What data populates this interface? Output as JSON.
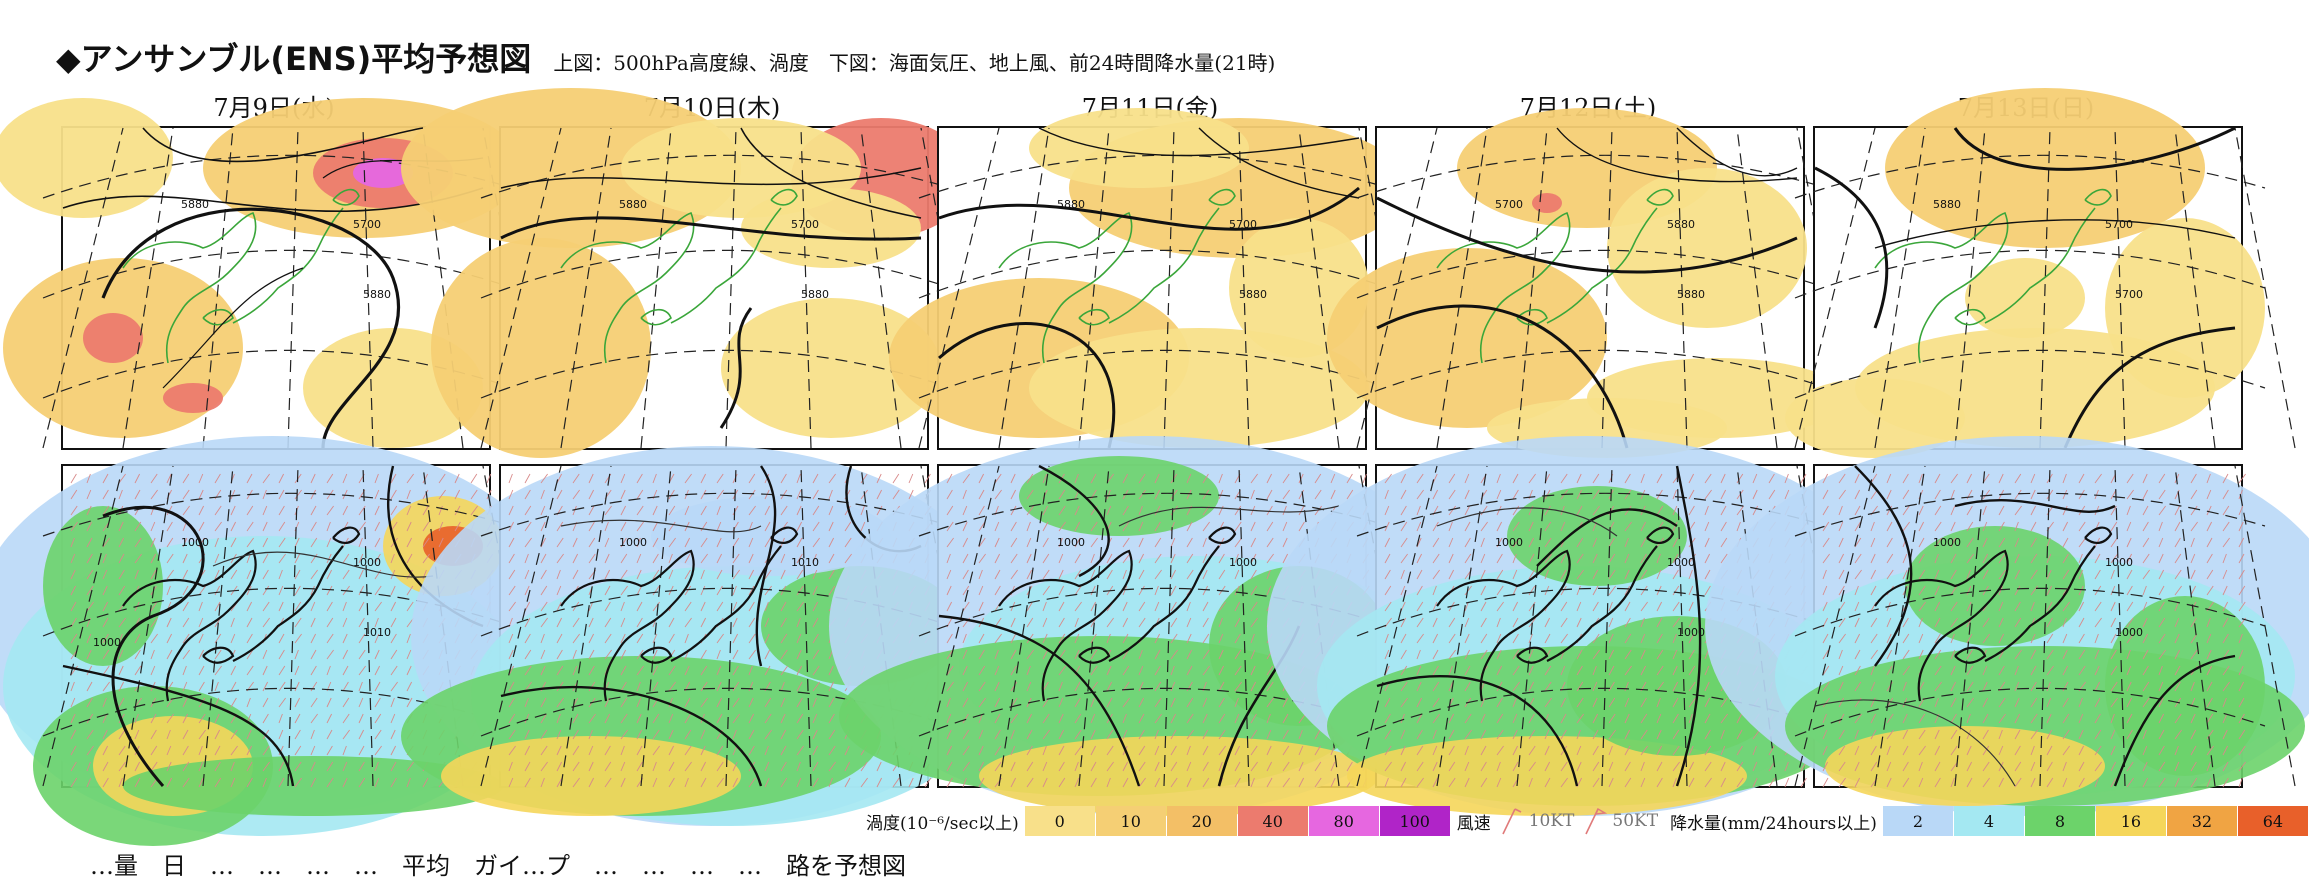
{
  "header": {
    "title": "◆アンサンブル(ENS)平均予想図",
    "subtitle": "上図：500hPa高度線、渦度　下図：海面気圧、地上風、前24時間降水量(21時)"
  },
  "dates": [
    "7月9日(水)",
    "7月10日(木)",
    "7月11日(金)",
    "7月12日(土)",
    "7月13日(日)"
  ],
  "upper_contour_labels": [
    [
      "5880",
      "5700",
      "5880"
    ],
    [
      "5880",
      "5700",
      "5880"
    ],
    [
      "5880",
      "5700",
      "5880"
    ],
    [
      "5700",
      "5880",
      "5880"
    ],
    [
      "5880",
      "5700",
      "5700"
    ]
  ],
  "lower_contour_labels": [
    [
      "1000",
      "1000",
      "1010",
      "1000"
    ],
    [
      "1000",
      "1010"
    ],
    [
      "1000",
      "1000"
    ],
    [
      "1000",
      "1000",
      "1000"
    ],
    [
      "1000",
      "1000",
      "1000"
    ]
  ],
  "legend": {
    "vorticity_label": "渦度(10⁻⁶/sec以上)",
    "vorticity_levels": [
      {
        "value": "0",
        "color": "#f8e08a"
      },
      {
        "value": "10",
        "color": "#f5cf74"
      },
      {
        "value": "20",
        "color": "#f3bf66"
      },
      {
        "value": "40",
        "color": "#ec7b6e"
      },
      {
        "value": "80",
        "color": "#e667e0"
      },
      {
        "value": "100",
        "color": "#b024c8"
      }
    ],
    "wind_label": "風速",
    "wind_10": "10KT",
    "wind_50": "50KT",
    "precip_label": "降水量(mm/24hours以上)",
    "precip_levels": [
      {
        "value": "2",
        "color": "#b9d8f7"
      },
      {
        "value": "4",
        "color": "#a4e8f2"
      },
      {
        "value": "8",
        "color": "#6cd36a"
      },
      {
        "value": "16",
        "color": "#f5d65a"
      },
      {
        "value": "32",
        "color": "#f0a443"
      },
      {
        "value": "64",
        "color": "#e8602a"
      }
    ]
  },
  "footer_text": "…量　日　…　…　…　…　平均　ガイ…プ　…　…　…　…　路を予想図"
}
